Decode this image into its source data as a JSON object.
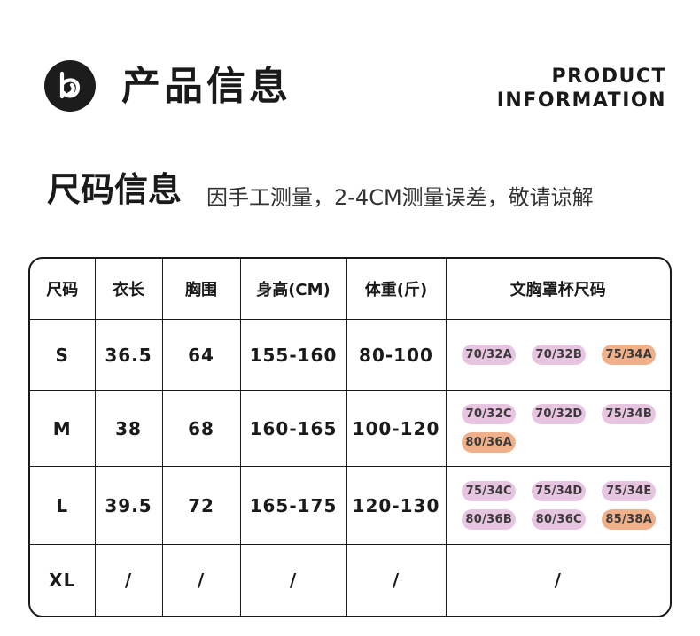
{
  "header": {
    "title": "产品信息",
    "en_title_line1": "PRODUCT",
    "en_title_line2": "INFORMATION"
  },
  "section": {
    "title": "尺码信息",
    "note": "因手工测量，2-4CM测量误差，敬请谅解"
  },
  "colors": {
    "pink": "#e7c5e1",
    "orange": "#f0b08a"
  },
  "table": {
    "headers": [
      "尺码",
      "衣长",
      "胸围",
      "身高(CM)",
      "体重(斤)",
      "文胸罩杯尺码"
    ],
    "rows": [
      {
        "size": "S",
        "length": "36.5",
        "bust": "64",
        "height": "155-160",
        "weight": "80-100",
        "cups": [
          {
            "label": "70/32A",
            "color": "pink"
          },
          {
            "label": "70/32B",
            "color": "pink"
          },
          {
            "label": "75/34A",
            "color": "orange"
          }
        ]
      },
      {
        "size": "M",
        "length": "38",
        "bust": "68",
        "height": "160-165",
        "weight": "100-120",
        "cups": [
          {
            "label": "70/32C",
            "color": "pink"
          },
          {
            "label": "70/32D",
            "color": "pink"
          },
          {
            "label": "75/34B",
            "color": "pink"
          },
          {
            "label": "80/36A",
            "color": "orange"
          }
        ]
      },
      {
        "size": "L",
        "length": "39.5",
        "bust": "72",
        "height": "165-175",
        "weight": "120-130",
        "cups": [
          {
            "label": "75/34C",
            "color": "pink"
          },
          {
            "label": "75/34D",
            "color": "pink"
          },
          {
            "label": "75/34E",
            "color": "pink"
          },
          {
            "label": "80/36B",
            "color": "pink"
          },
          {
            "label": "80/36C",
            "color": "pink"
          },
          {
            "label": "85/38A",
            "color": "orange"
          }
        ]
      },
      {
        "size": "XL",
        "length": "/",
        "bust": "/",
        "height": "/",
        "weight": "/",
        "cup_text": "/"
      }
    ]
  }
}
